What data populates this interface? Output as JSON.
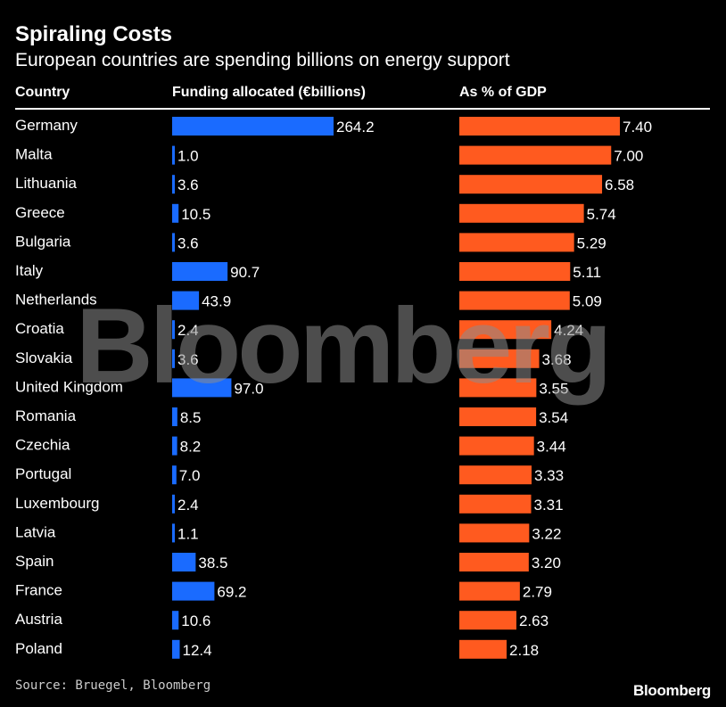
{
  "title": "Spiraling Costs",
  "subtitle": "European countries are spending billions on energy support",
  "source": "Source: Bruegel, Bloomberg",
  "logo": "Bloomberg",
  "watermark": "Bloomberg",
  "colors": {
    "funding": "#1a6bff",
    "gdp": "#ff5a1f",
    "background": "#000000"
  },
  "chart_data": {
    "type": "bar",
    "columns": [
      "Country",
      "Funding allocated (€billions)",
      "As % of GDP"
    ],
    "categories": [
      "Germany",
      "Malta",
      "Lithuania",
      "Greece",
      "Bulgaria",
      "Italy",
      "Netherlands",
      "Croatia",
      "Slovakia",
      "United Kingdom",
      "Romania",
      "Czechia",
      "Portugal",
      "Luxembourg",
      "Latvia",
      "Spain",
      "France",
      "Austria",
      "Poland"
    ],
    "series": [
      {
        "name": "Funding allocated (€billions)",
        "values": [
          264.2,
          1.0,
          3.6,
          10.5,
          3.6,
          90.7,
          43.9,
          2.4,
          3.6,
          97.0,
          8.5,
          8.2,
          7.0,
          2.4,
          1.1,
          38.5,
          69.2,
          10.6,
          12.4
        ],
        "labels": [
          "264.2",
          "1.0",
          "3.6",
          "10.5",
          "3.6",
          "90.7",
          "43.9",
          "2.4",
          "3.6",
          "97.0",
          "8.5",
          "8.2",
          "7.0",
          "2.4",
          "1.1",
          "38.5",
          "69.2",
          "10.6",
          "12.4"
        ]
      },
      {
        "name": "As % of GDP",
        "values": [
          7.4,
          7.0,
          6.58,
          5.74,
          5.29,
          5.11,
          5.09,
          4.24,
          3.68,
          3.55,
          3.54,
          3.44,
          3.33,
          3.31,
          3.22,
          3.2,
          2.79,
          2.63,
          2.18
        ],
        "labels": [
          "7.40",
          "7.00",
          "6.58",
          "5.74",
          "5.29",
          "5.11",
          "5.09",
          "4.24",
          "3.68",
          "3.55",
          "3.54",
          "3.44",
          "3.33",
          "3.31",
          "3.22",
          "3.20",
          "2.79",
          "2.63",
          "2.18"
        ]
      }
    ]
  }
}
